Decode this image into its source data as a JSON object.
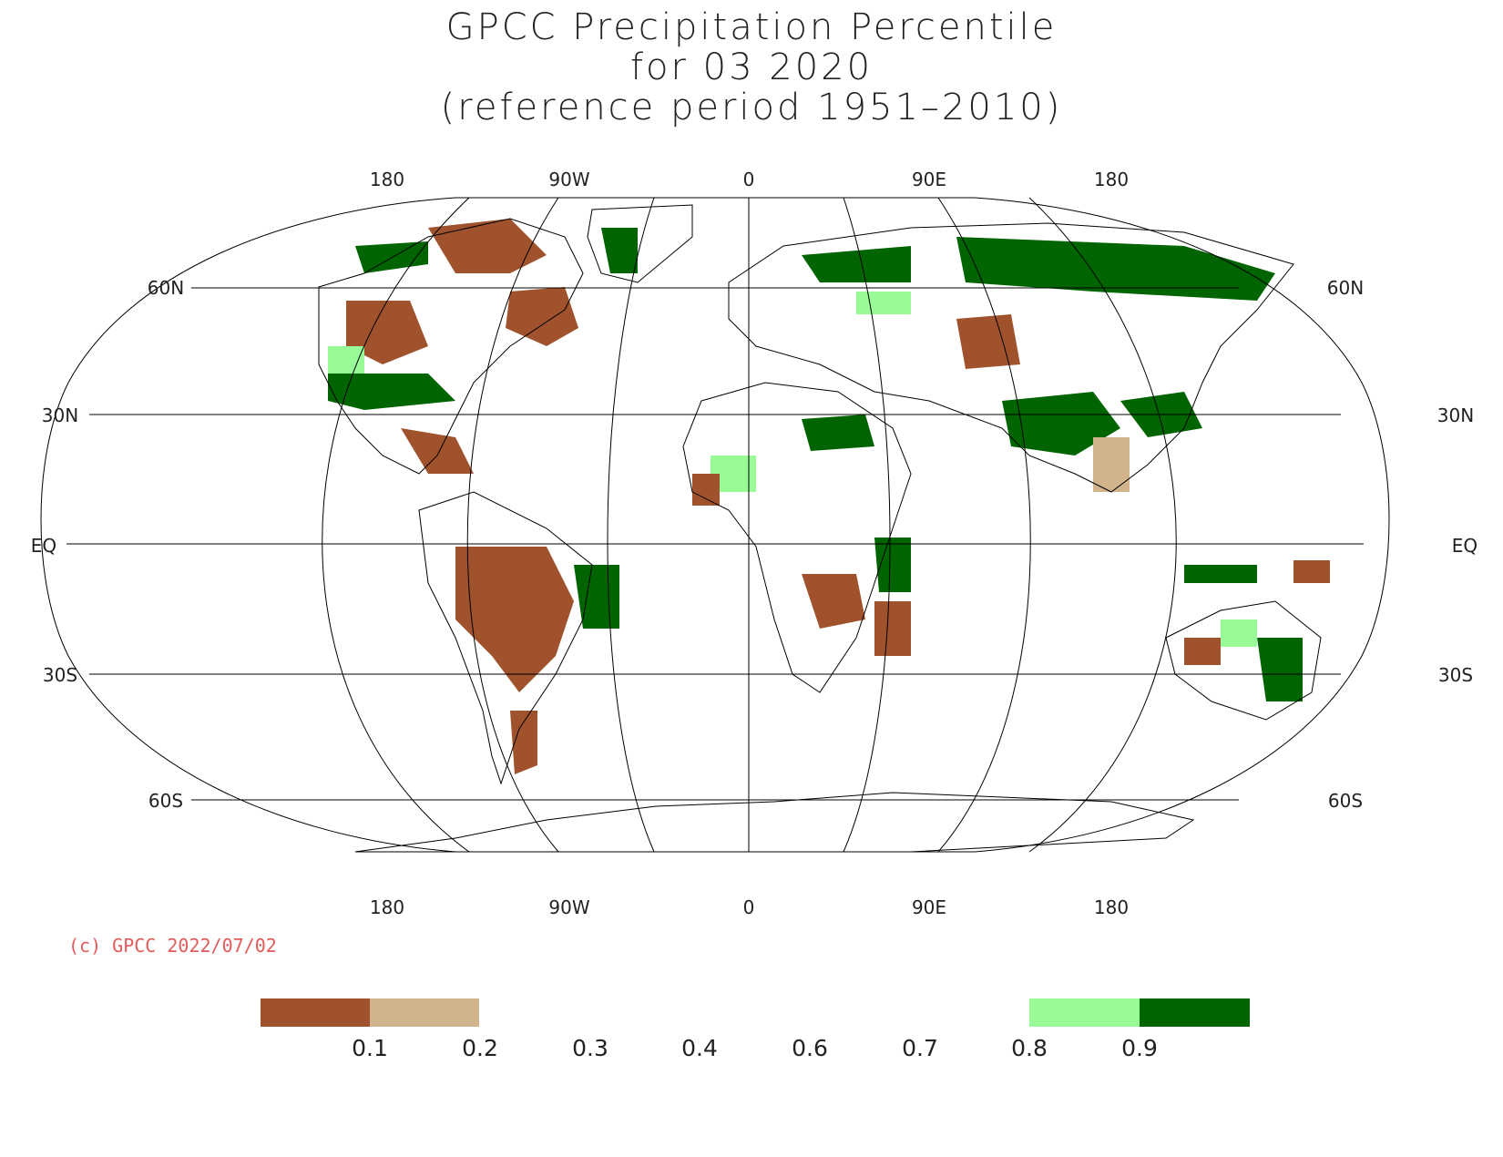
{
  "title": {
    "line1": "GPCC Precipitation Percentile",
    "line2": "for 03 2020",
    "line3": "(reference period 1951–2010)"
  },
  "map": {
    "projection": "Robinson",
    "top_longitude_labels": [
      "180",
      "90W",
      "0",
      "90E",
      "180"
    ],
    "bottom_longitude_labels": [
      "180",
      "90W",
      "0",
      "90E",
      "180"
    ],
    "latitude_labels": [
      "60N",
      "30N",
      "EQ",
      "30S",
      "60S"
    ],
    "colors": {
      "dry_strong": "#a0522d",
      "dry_weak": "#d2b48c",
      "wet_weak": "#98fb98",
      "wet_strong": "#006400",
      "coast": "#000000",
      "grid": "#000000"
    }
  },
  "copyright": "(c) GPCC 2022/07/02",
  "legend": {
    "ticks": [
      "0.1",
      "0.2",
      "0.3",
      "0.4",
      "0.6",
      "0.7",
      "0.8",
      "0.9"
    ],
    "swatches": [
      {
        "range": "<0.1",
        "color": "#a0522d"
      },
      {
        "range": "0.1-0.2",
        "color": "#d2b48c"
      },
      {
        "range": "0.8-0.9",
        "color": "#98fb98"
      },
      {
        "range": ">0.9",
        "color": "#006400"
      }
    ]
  }
}
